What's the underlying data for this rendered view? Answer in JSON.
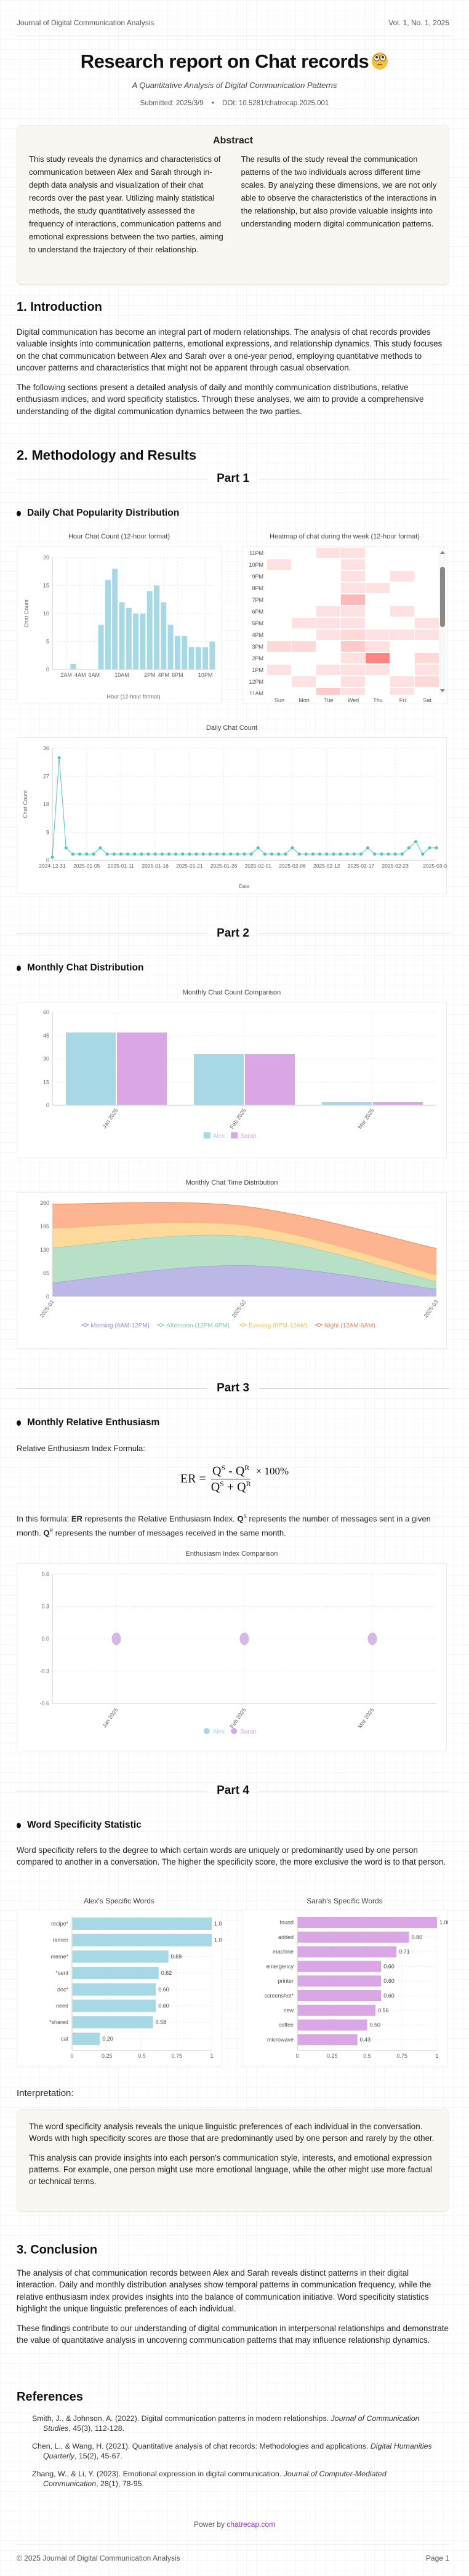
{
  "header": {
    "journal": "Journal of Digital Communication Analysis",
    "volume": "Vol. 1, No. 1, 2025"
  },
  "title": "Research report on Chat records",
  "title_emoji": "face-with-worried-eyes",
  "subtitle": "A Quantitative Analysis of Digital Communication Patterns",
  "meta": {
    "submitted": "Submitted: 2025/3/9",
    "separator": "•",
    "doi": "DOI: 10.5281/chatrecap.2025.001"
  },
  "abstract": {
    "heading": "Abstract",
    "left": "This study reveals the dynamics and characteristics of communication between Alex and Sarah through in-depth data analysis and visualization of their chat records over the past year. Utilizing mainly statistical methods, the study quantitatively assessed the frequency of interactions, communication patterns and emotional expressions between the two parties, aiming to understand the trajectory of their relationship.",
    "right": "The results of the study reveal the communication patterns of the two individuals across different time scales. By analyzing these dimensions, we are not only able to observe the characteristics of the interactions in the relationship, but also provide valuable insights into understanding modern digital communication patterns."
  },
  "intro": {
    "heading": "1. Introduction",
    "p1": "Digital communication has become an integral part of modern relationships. The analysis of chat records provides valuable insights into communication patterns, emotional expressions, and relationship dynamics. This study focuses on the chat communication between Alex and Sarah over a one-year period, employing quantitative methods to uncover patterns and characteristics that might not be apparent through casual observation.",
    "p2": "The following sections present a detailed analysis of daily and monthly communication distributions, relative enthusiasm indices, and word specificity statistics. Through these analyses, we aim to provide a comprehensive understanding of the digital communication dynamics between the two parties."
  },
  "methods": {
    "heading": "2. Methodology and Results"
  },
  "colors": {
    "alex": "#a6d8e6",
    "sarah": "#d9a6e6",
    "heat": "#ff8080",
    "line": "#4fc4c0",
    "link": "#9b30e0"
  },
  "part1": {
    "label": "Part 1",
    "heading": "Daily Chat Popularity Distribution",
    "hour_chart": {
      "chart_data": {
        "type": "bar",
        "title": "Hour Chat Count (12-hour format)",
        "xlabel": "Hour (12-hour format)",
        "ylabel": "Chat Count",
        "ylim": [
          0,
          20
        ],
        "yticks": [
          0,
          5,
          10,
          15,
          20
        ],
        "categories": [
          "12AM",
          "1AM",
          "2AM",
          "3AM",
          "4AM",
          "5AM",
          "6AM",
          "7AM",
          "8AM",
          "9AM",
          "10AM",
          "11AM",
          "12PM",
          "1PM",
          "2PM",
          "3PM",
          "4PM",
          "5PM",
          "6PM",
          "7PM",
          "8PM",
          "9PM",
          "10PM",
          "11PM"
        ],
        "tick_labels": [
          "2AM",
          "4AM",
          "6AM",
          "10AM",
          "2PM",
          "4PM",
          "6PM",
          "10PM"
        ],
        "values": [
          0,
          0,
          0,
          1,
          0,
          0,
          0,
          8,
          16,
          18,
          12,
          11,
          10,
          10,
          14,
          15,
          12,
          8,
          6,
          6,
          4,
          4,
          4,
          5
        ],
        "grid": true
      }
    },
    "heatmap": {
      "chart_data": {
        "type": "heatmap",
        "title": "Heatmap of chat during the week (12-hour format)",
        "columns": [
          "Sun",
          "Mon",
          "Tue",
          "Wed",
          "Thu",
          "Fri",
          "Sat"
        ],
        "rows": [
          "11PM",
          "10PM",
          "9PM",
          "8PM",
          "7PM",
          "6PM",
          "5PM",
          "4PM",
          "3PM",
          "2PM",
          "1PM",
          "12PM",
          "11AM"
        ],
        "values": [
          [
            0,
            0,
            1,
            1,
            0,
            0,
            0
          ],
          [
            1,
            0,
            0,
            1,
            0,
            0,
            0
          ],
          [
            0,
            0,
            0,
            1,
            0,
            1,
            0
          ],
          [
            0,
            0,
            0,
            1,
            1,
            0,
            0
          ],
          [
            0,
            0,
            0,
            4,
            0,
            0,
            0
          ],
          [
            0,
            0,
            1,
            1,
            0,
            1,
            0
          ],
          [
            0,
            1,
            1,
            1,
            0,
            0,
            1
          ],
          [
            0,
            0,
            1,
            2,
            1,
            1,
            1
          ],
          [
            2,
            2,
            0,
            3,
            1,
            0,
            0
          ],
          [
            0,
            0,
            0,
            1,
            6,
            0,
            2
          ],
          [
            1,
            0,
            1,
            1,
            1,
            0,
            1
          ],
          [
            0,
            1,
            0,
            1,
            0,
            1,
            2
          ],
          [
            0,
            0,
            3,
            1,
            0,
            1,
            0
          ]
        ]
      }
    },
    "daily_chart": {
      "chart_data": {
        "type": "line",
        "title": "Daily Chat Count",
        "xlabel": "Date",
        "ylabel": "Chat Count",
        "ylim": [
          0,
          36
        ],
        "yticks": [
          0,
          9,
          18,
          27,
          36
        ],
        "x_tick_labels": [
          "2024-12-31",
          "2025-01-05",
          "2025-01-11",
          "2025-01-16",
          "2025-01-21",
          "2025-01-26",
          "2025-02-01",
          "2025-02-06",
          "2025-02-12",
          "2025-02-17",
          "2025-02-23",
          "2025-03-01"
        ],
        "values": [
          1,
          33,
          4,
          2,
          2,
          2,
          2,
          4,
          2,
          2,
          2,
          2,
          2,
          2,
          2,
          2,
          2,
          2,
          2,
          2,
          2,
          2,
          2,
          2,
          2,
          2,
          2,
          2,
          2,
          2,
          4,
          2,
          2,
          2,
          2,
          4,
          2,
          2,
          2,
          2,
          2,
          2,
          2,
          2,
          2,
          2,
          4,
          2,
          2,
          2,
          2,
          2,
          4,
          6,
          2,
          4,
          4
        ],
        "grid": true
      }
    }
  },
  "part2": {
    "label": "Part 2",
    "heading": "Monthly Chat Distribution",
    "count_chart": {
      "chart_data": {
        "type": "bar",
        "title": "Monthly Chat Count Comparison",
        "categories": [
          "Jan 2025",
          "Feb 2025",
          "Mar 2025"
        ],
        "ylim": [
          0,
          60
        ],
        "yticks": [
          0,
          15,
          30,
          45,
          60
        ],
        "series": [
          {
            "name": "Alex",
            "values": [
              47,
              33,
              2
            ]
          },
          {
            "name": "Sarah",
            "values": [
              47,
              33,
              2
            ]
          }
        ],
        "legend": "bottom",
        "grid": true
      }
    },
    "time_chart": {
      "chart_data": {
        "type": "area",
        "stacked": true,
        "title": "Monthly Chat Time Distribution",
        "categories": [
          "2025-01",
          "2025-02",
          "2025-03"
        ],
        "ylim": [
          0,
          260
        ],
        "yticks": [
          0,
          65,
          130,
          195,
          260
        ],
        "series": [
          {
            "name": "Morning (6AM-12PM)",
            "color": "#b7b3e6",
            "values": [
              39,
              87,
              21
            ]
          },
          {
            "name": "Afternoon (12PM-6PM)",
            "color": "#b3dec4",
            "values": [
              97,
              81,
              21
            ]
          },
          {
            "name": "Evening (6PM-12AM)",
            "color": "#fdd896",
            "values": [
              54,
              30,
              18
            ]
          },
          {
            "name": "Night (12AM-6AM)",
            "color": "#fdb08a",
            "values": [
              67,
              53,
              74
            ]
          }
        ],
        "legend": "bottom",
        "grid": true
      }
    }
  },
  "part3": {
    "label": "Part 3",
    "heading": "Monthly Relative Enthusiasm",
    "formula_label": "Relative Enthusiasm Index Formula:",
    "formula": {
      "lhs": "ER =",
      "num_q1": "Q",
      "num_s": "S",
      "num_op": " - ",
      "num_q2": "Q",
      "num_r": "R",
      "den_q1": "Q",
      "den_s": "S",
      "den_op": " + ",
      "den_q2": "Q",
      "den_r": "R",
      "times": "× 100%"
    },
    "explain": {
      "t1": "In this formula: ",
      "er": "ER",
      "t2": " represents the Relative Enthusiasm Index. ",
      "q": "Q",
      "s": "S",
      "t3": " represents the number of messages sent in a given month. ",
      "r": "R",
      "t4": " represents the number of messages received in the same month."
    },
    "enthusiasm_chart": {
      "chart_data": {
        "type": "scatter",
        "title": "Enthusiasm Index Comparison",
        "categories": [
          "Jan 2025",
          "Feb 2025",
          "Mar 2025"
        ],
        "ylim": [
          -0.6,
          0.6
        ],
        "yticks": [
          "0.6",
          "0.3",
          "0.0",
          "-0.3",
          "-0.6"
        ],
        "series": [
          {
            "name": "Alex",
            "values": [
              0,
              0,
              0
            ]
          },
          {
            "name": "Sarah",
            "values": [
              0,
              0,
              0
            ]
          }
        ],
        "legend": "bottom",
        "grid": true
      }
    }
  },
  "part4": {
    "label": "Part 4",
    "heading": "Word Specificity Statistic",
    "intro": "Word specificity refers to the degree to which certain words are uniquely or predominantly used by one person compared to another in a conversation. The higher the specificity score, the more exclusive the word is to that person.",
    "alex_chart": {
      "chart_data": {
        "type": "bar",
        "orientation": "horizontal",
        "title": "Alex's Specific Words",
        "xlim": [
          0,
          1
        ],
        "xticks": [
          "0",
          "0.25",
          "0.5",
          "0.75",
          "1"
        ],
        "categories": [
          "recipe*",
          "ramen",
          "meme*",
          "*sent",
          "doc*",
          "need",
          "*shared",
          "cat"
        ],
        "values": [
          1.0,
          1.0,
          0.69,
          0.62,
          0.6,
          0.6,
          0.58,
          0.2
        ]
      }
    },
    "sarah_chart": {
      "chart_data": {
        "type": "bar",
        "orientation": "horizontal",
        "title": "Sarah's Specific Words",
        "xlim": [
          0,
          1
        ],
        "xticks": [
          "0",
          "0.25",
          "0.5",
          "0.75",
          "1"
        ],
        "categories": [
          "found",
          "added",
          "machine",
          "emergency",
          "printer",
          "screenshot*",
          "new",
          "coffee",
          "microwave"
        ],
        "values": [
          1.0,
          0.8,
          0.71,
          0.6,
          0.6,
          0.6,
          0.56,
          0.5,
          0.43
        ]
      }
    },
    "interp_heading": "Interpretation:",
    "interp_p1": "The word specificity analysis reveals the unique linguistic preferences of each individual in the conversation. Words with high specificity scores are those that are predominantly used by one person and rarely by the other.",
    "interp_p2": "This analysis can provide insights into each person's communication style, interests, and emotional expression patterns. For example, one person might use more emotional language, while the other might use more factual or technical terms."
  },
  "conclusion": {
    "heading": "3. Conclusion",
    "p1": "The analysis of chat communication records between Alex and Sarah reveals distinct patterns in their digital interaction. Daily and monthly distribution analyses show temporal patterns in communication frequency, while the relative enthusiasm index provides insights into the balance of communication initiative. Word specificity statistics highlight the unique linguistic preferences of each individual.",
    "p2": "These findings contribute to our understanding of digital communication in interpersonal relationships and demonstrate the value of quantitative analysis in uncovering communication patterns that may influence relationship dynamics."
  },
  "references": {
    "heading": "References",
    "items": [
      {
        "pre": "Smith, J., & Johnson, A. (2022). Digital communication patterns in modern relationships. ",
        "journal": "Journal of Communication Studies",
        "post": ", 45(3), 112-128."
      },
      {
        "pre": "Chen, L., & Wang, H. (2021). Quantitative analysis of chat records: Methodologies and applications. ",
        "journal": "Digital Humanities Quarterly",
        "post": ", 15(2), 45-67."
      },
      {
        "pre": "Zhang, W., & Li, Y. (2023). Emotional expression in digital communication. ",
        "journal": "Journal of Computer-Mediated Communication",
        "post": ", 28(1), 78-95."
      }
    ]
  },
  "powered": {
    "prefix": "Power by ",
    "link": "chatrecap.com"
  },
  "footer": {
    "copyright": "© 2025 Journal of Digital Communication Analysis",
    "page": "Page 1"
  }
}
